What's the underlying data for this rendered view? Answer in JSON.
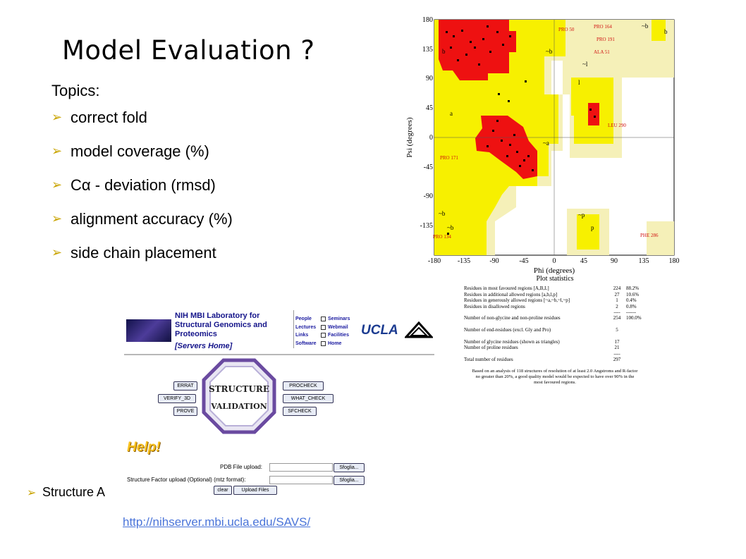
{
  "slide": {
    "title": "Model Evaluation ?",
    "topics_heading": "Topics:",
    "bullets": [
      "correct fold",
      "model coverage (%)",
      "Cα - deviation (rmsd)",
      "alignment accuracy (%)",
      "side chain placement"
    ],
    "bullet_glyph": "➢",
    "structure_label": "Structure A",
    "link": "http://nihserver.mbi.ucla.edu/SAVS/"
  },
  "ramachandran": {
    "x_label": "Phi (degrees)",
    "y_label": "Psi (degrees)",
    "x_ticks": [
      "-180",
      "-135",
      "-90",
      "-45",
      "0",
      "45",
      "90",
      "135",
      "180"
    ],
    "y_ticks": [
      "180",
      "135",
      "90",
      "45",
      "0",
      "-45",
      "-90",
      "-135"
    ],
    "region_labels": [
      "b",
      "~b",
      "~l",
      "l",
      "a",
      "~a",
      "~b",
      "b",
      "~p",
      "p",
      "~b",
      "~b"
    ],
    "outliers": [
      "PRO 50",
      "PRO 164",
      "PRO 191",
      "ALA 51",
      "LEU 290",
      "PRO 171",
      "PRO 134",
      "PHE 286"
    ]
  },
  "plot_statistics": {
    "heading": "Plot statistics",
    "rows": [
      {
        "label": "Residues in most favoured regions  [A,B,L]",
        "count": "224",
        "pct": "88.2%"
      },
      {
        "label": "Residues in additional allowed regions  [a,b,l,p]",
        "count": "27",
        "pct": "10.6%"
      },
      {
        "label": "Residues in generously allowed regions  [~a,~b,~l,~p]",
        "count": "1",
        "pct": "0.4%"
      },
      {
        "label": "Residues in disallowed regions",
        "count": "2",
        "pct": "0.8%"
      },
      {
        "label": "",
        "count": "----",
        "pct": "------"
      },
      {
        "label": "Number of non-glycine and non-proline residues",
        "count": "254",
        "pct": "100.0%"
      },
      {
        "label": "",
        "count": "",
        "pct": ""
      },
      {
        "label": "Number of end-residues (excl. Gly and Pro)",
        "count": "5",
        "pct": ""
      },
      {
        "label": "",
        "count": "",
        "pct": ""
      },
      {
        "label": "Number of glycine residues (shown as triangles)",
        "count": "17",
        "pct": ""
      },
      {
        "label": "Number of proline residues",
        "count": "21",
        "pct": ""
      },
      {
        "label": "",
        "count": "----",
        "pct": ""
      },
      {
        "label": "Total number of residues",
        "count": "297",
        "pct": ""
      }
    ],
    "note": "Based on an analysis of 118 structures of resolution of at least 2.0 Angstroms and R-factor no greater than 20%, a good quality model would be expected to have over 90% in the most favoured regions."
  },
  "savs": {
    "lab_line1": "NIH MBI Laboratory for",
    "lab_line2": "Structural Genomics and",
    "lab_line3": "Proteomics",
    "servers_home": "[Servers Home]",
    "nav": [
      {
        "a": "People",
        "b": "Seminars"
      },
      {
        "a": "Lectures",
        "b": "Webmail"
      },
      {
        "a": "Links",
        "b": "Facilities"
      },
      {
        "a": "Software",
        "b": "Home"
      }
    ],
    "ucla": "UCLA",
    "left_buttons": [
      "ERRAT",
      "VERIFY_3D",
      "PROVE"
    ],
    "right_buttons": [
      "PROCHECK",
      "WHAT_CHECK",
      "SFCHECK"
    ],
    "octagon_line1": "STRUCTURE",
    "octagon_line2": "VALIDATION",
    "help": "Help!",
    "pdb_upload_label": "PDB File upload:",
    "sf_upload_label": "Structure Factor upload (Optional) (mtz format):",
    "browse": "Sfoglia...",
    "clear": "clear",
    "upload": "Upload Files"
  }
}
